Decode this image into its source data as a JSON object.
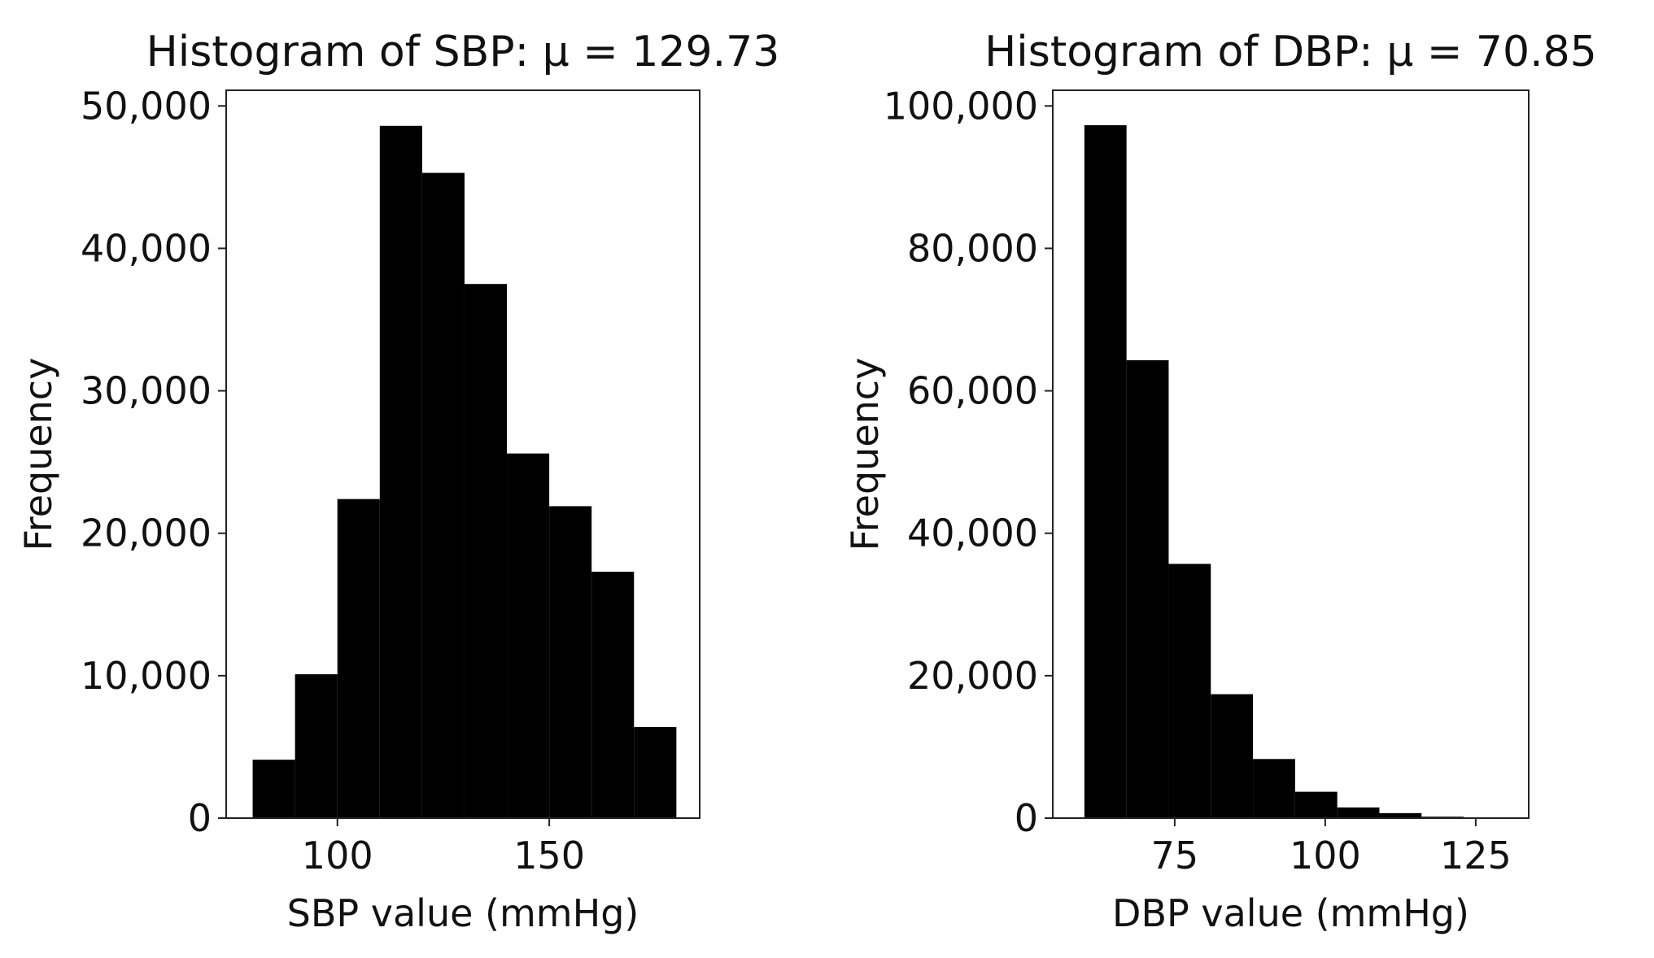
{
  "chart_data": [
    {
      "type": "histogram",
      "title": "Histogram of SBP: μ = 129.73",
      "xlabel": "SBP value (mmHg)",
      "ylabel": "Frequency",
      "bins": [
        80,
        90,
        100,
        110,
        120,
        130,
        140,
        150,
        160,
        170,
        180
      ],
      "counts": [
        4100,
        10100,
        22400,
        48600,
        45300,
        37500,
        25600,
        21900,
        17300,
        6400
      ],
      "color": "#000000",
      "xlim": [
        73.75,
        185.5
      ],
      "xticks": [
        100,
        150
      ],
      "ylim": [
        0,
        51100
      ],
      "yticks": [
        0,
        {
          "value": 10000,
          "label": "10,000"
        },
        {
          "value": 20000,
          "label": "20,000"
        },
        {
          "value": 30000,
          "label": "30,000"
        },
        {
          "value": 40000,
          "label": "40,000"
        },
        {
          "value": 50000,
          "label": "50,000"
        }
      ]
    },
    {
      "type": "histogram",
      "title": "Histogram of DBP: μ = 70.85",
      "xlabel": "DBP value (mmHg)",
      "ylabel": "Frequency",
      "bins": [
        60,
        67,
        74,
        81,
        88,
        95,
        102,
        109,
        116,
        123,
        130
      ],
      "counts": [
        97300,
        64300,
        35700,
        17400,
        8300,
        3700,
        1500,
        700,
        200,
        100
      ],
      "color": "#000000",
      "xlim": [
        54.75,
        133.8
      ],
      "xticks": [
        75,
        100,
        125
      ],
      "ylim": [
        0,
        102200
      ],
      "yticks": [
        0,
        {
          "value": 20000,
          "label": "20,000"
        },
        {
          "value": 40000,
          "label": "40,000"
        },
        {
          "value": 60000,
          "label": "60,000"
        },
        {
          "value": 80000,
          "label": "80,000"
        },
        {
          "value": 100000,
          "label": "100,000"
        }
      ]
    }
  ]
}
